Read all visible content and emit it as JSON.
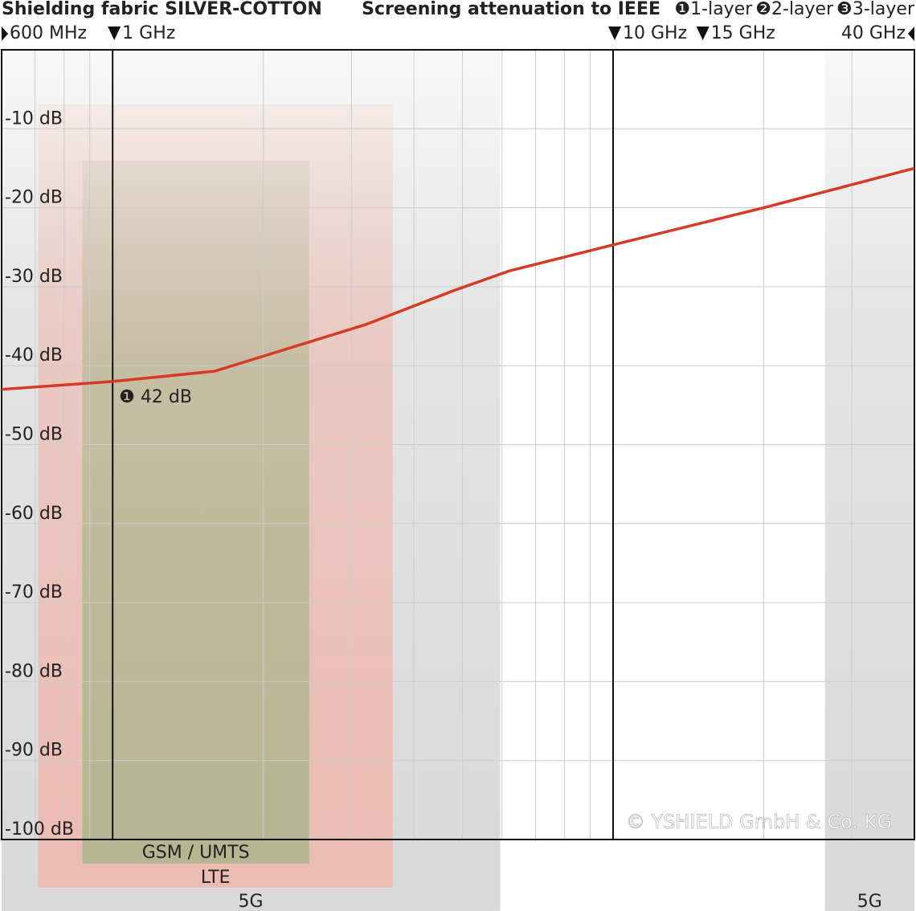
{
  "chart_data": {
    "type": "line",
    "title": "Shielding fabric SILVER-COTTON",
    "subtitle": "Screening attenuation to IEEE",
    "legend": [
      "❶1-layer",
      "❷2-layer",
      "❸3-layer"
    ],
    "x_scale": "log",
    "xlim": [
      0.6,
      40
    ],
    "xgrid": [
      0.7,
      0.8,
      0.9,
      1,
      2,
      3,
      4,
      5,
      6,
      7,
      8,
      9,
      10,
      20,
      30,
      40
    ],
    "xmajor": [
      1,
      10
    ],
    "freq_markers": [
      {
        "value": 0.6,
        "label": "600 MHz"
      },
      {
        "value": 1,
        "label": "1 GHz"
      },
      {
        "value": 10,
        "label": "10 GHz"
      },
      {
        "value": 15,
        "label": "15 GHz"
      },
      {
        "value": 40,
        "label": "40 GHz"
      }
    ],
    "ylim": [
      -100,
      0
    ],
    "yticks": [
      {
        "value": -10,
        "label": "-10 dB"
      },
      {
        "value": -20,
        "label": "-20 dB"
      },
      {
        "value": -30,
        "label": "-30 dB"
      },
      {
        "value": -40,
        "label": "-40 dB"
      },
      {
        "value": -50,
        "label": "-50 dB"
      },
      {
        "value": -60,
        "label": "-60 dB"
      },
      {
        "value": -70,
        "label": "-70 dB"
      },
      {
        "value": -80,
        "label": "-80 dB"
      },
      {
        "value": -90,
        "label": "-90 dB"
      },
      {
        "value": -100,
        "label": "-100 dB"
      }
    ],
    "grid": true,
    "x": [
      0.6,
      1,
      1.6,
      3.2,
      4.8,
      6.2,
      10,
      20,
      40
    ],
    "series": [
      {
        "name": "1-layer",
        "color": "#d63a22",
        "values": [
          -43,
          -42,
          -40.7,
          -34.8,
          -30.5,
          -28,
          -24.7,
          -20,
          -15
        ]
      }
    ],
    "annotation": {
      "text": "❶ 42 dB",
      "x": 1,
      "y": -42
    },
    "bands": [
      {
        "label": "5G",
        "range": [
          0.6,
          5.95
        ],
        "color": "#cfcfcf"
      },
      {
        "label": "LTE",
        "range": [
          0.71,
          3.63
        ],
        "color": "#f0b4a8"
      },
      {
        "label": "GSM / UMTS",
        "range": [
          0.87,
          2.47
        ],
        "color": "#a6b58a"
      },
      {
        "label": "5G",
        "range": [
          26.5,
          40
        ],
        "color": "#cfcfcf"
      }
    ],
    "copyright": "© YSHIELD GmbH & Co. KG"
  }
}
